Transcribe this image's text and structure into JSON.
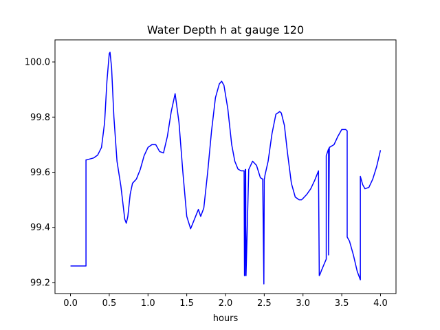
{
  "chart_data": {
    "type": "line",
    "title": "Water Depth h at gauge 120",
    "xlabel": "hours",
    "ylabel": "",
    "xlim": [
      -0.2,
      4.2
    ],
    "ylim": [
      99.16,
      100.08
    ],
    "xticks": [
      0.0,
      0.5,
      1.0,
      1.5,
      2.0,
      2.5,
      3.0,
      3.5,
      4.0
    ],
    "xtick_labels": [
      "0.0",
      "0.5",
      "1.0",
      "1.5",
      "2.0",
      "2.5",
      "3.0",
      "3.5",
      "4.0"
    ],
    "yticks": [
      99.2,
      99.4,
      99.6,
      99.8,
      100.0
    ],
    "ytick_labels": [
      "99.2",
      "99.4",
      "99.6",
      "99.8",
      "100.0"
    ],
    "grid": false,
    "line_color": "#0000ff",
    "series": [
      {
        "name": "",
        "x": [
          0.0,
          0.2,
          0.2,
          0.21,
          0.3,
          0.35,
          0.4,
          0.44,
          0.47,
          0.5,
          0.51,
          0.53,
          0.56,
          0.6,
          0.65,
          0.7,
          0.72,
          0.74,
          0.77,
          0.8,
          0.85,
          0.9,
          0.95,
          1.0,
          1.05,
          1.1,
          1.15,
          1.2,
          1.25,
          1.3,
          1.35,
          1.4,
          1.45,
          1.5,
          1.55,
          1.6,
          1.65,
          1.68,
          1.72,
          1.77,
          1.82,
          1.87,
          1.92,
          1.95,
          1.98,
          2.03,
          2.08,
          2.12,
          2.16,
          2.2,
          2.24,
          2.245,
          2.25,
          2.255,
          2.26,
          2.265,
          2.3,
          2.35,
          2.4,
          2.45,
          2.48,
          2.495,
          2.5,
          2.505,
          2.51,
          2.55,
          2.6,
          2.65,
          2.7,
          2.72,
          2.76,
          2.8,
          2.85,
          2.9,
          2.95,
          2.98,
          3.0,
          3.05,
          3.1,
          3.15,
          3.2,
          3.21,
          3.22,
          3.24,
          3.27,
          3.3,
          3.3,
          3.33,
          3.33,
          3.34,
          3.34,
          3.4,
          3.45,
          3.5,
          3.55,
          3.57,
          3.57,
          3.6,
          3.65,
          3.7,
          3.74,
          3.74,
          3.77,
          3.8,
          3.85,
          3.9,
          3.95,
          4.0
        ],
        "y": [
          99.26,
          99.26,
          99.645,
          99.645,
          99.652,
          99.662,
          99.69,
          99.78,
          99.93,
          100.03,
          100.035,
          99.98,
          99.8,
          99.64,
          99.55,
          99.43,
          99.415,
          99.44,
          99.52,
          99.56,
          99.575,
          99.61,
          99.66,
          99.69,
          99.7,
          99.7,
          99.675,
          99.67,
          99.73,
          99.82,
          99.885,
          99.78,
          99.6,
          99.44,
          99.395,
          99.43,
          99.465,
          99.44,
          99.47,
          99.6,
          99.75,
          99.87,
          99.92,
          99.93,
          99.915,
          99.83,
          99.7,
          99.64,
          99.612,
          99.605,
          99.605,
          99.225,
          99.225,
          99.61,
          99.61,
          99.225,
          99.61,
          99.64,
          99.625,
          99.58,
          99.575,
          99.195,
          99.575,
          99.58,
          99.59,
          99.64,
          99.74,
          99.81,
          99.82,
          99.815,
          99.77,
          99.67,
          99.56,
          99.51,
          99.5,
          99.5,
          99.505,
          99.52,
          99.54,
          99.57,
          99.605,
          99.225,
          99.23,
          99.245,
          99.265,
          99.285,
          99.66,
          99.685,
          99.3,
          99.69,
          99.69,
          99.7,
          99.73,
          99.755,
          99.755,
          99.75,
          99.365,
          99.35,
          99.3,
          99.24,
          99.21,
          99.585,
          99.555,
          99.54,
          99.545,
          99.575,
          99.62,
          99.68
        ]
      }
    ]
  }
}
